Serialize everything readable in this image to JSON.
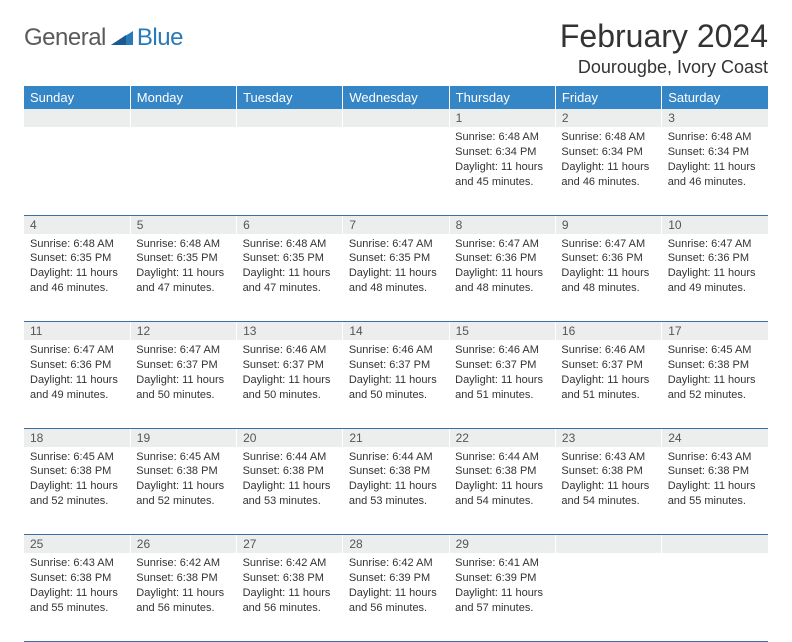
{
  "logo": {
    "general": "General",
    "blue": "Blue"
  },
  "title": "February 2024",
  "location": "Dourougbe, Ivory Coast",
  "colors": {
    "header_bg": "#3586c6",
    "header_fg": "#ffffff",
    "daynum_bg": "#eceded",
    "border": "#3a6fa5",
    "logo_blue": "#2a7ab8",
    "logo_gray": "#5a5a5a"
  },
  "weekdays": [
    "Sunday",
    "Monday",
    "Tuesday",
    "Wednesday",
    "Thursday",
    "Friday",
    "Saturday"
  ],
  "weeks": [
    [
      null,
      null,
      null,
      null,
      {
        "n": "1",
        "sr": "Sunrise: 6:48 AM",
        "ss": "Sunset: 6:34 PM",
        "d1": "Daylight: 11 hours",
        "d2": "and 45 minutes."
      },
      {
        "n": "2",
        "sr": "Sunrise: 6:48 AM",
        "ss": "Sunset: 6:34 PM",
        "d1": "Daylight: 11 hours",
        "d2": "and 46 minutes."
      },
      {
        "n": "3",
        "sr": "Sunrise: 6:48 AM",
        "ss": "Sunset: 6:34 PM",
        "d1": "Daylight: 11 hours",
        "d2": "and 46 minutes."
      }
    ],
    [
      {
        "n": "4",
        "sr": "Sunrise: 6:48 AM",
        "ss": "Sunset: 6:35 PM",
        "d1": "Daylight: 11 hours",
        "d2": "and 46 minutes."
      },
      {
        "n": "5",
        "sr": "Sunrise: 6:48 AM",
        "ss": "Sunset: 6:35 PM",
        "d1": "Daylight: 11 hours",
        "d2": "and 47 minutes."
      },
      {
        "n": "6",
        "sr": "Sunrise: 6:48 AM",
        "ss": "Sunset: 6:35 PM",
        "d1": "Daylight: 11 hours",
        "d2": "and 47 minutes."
      },
      {
        "n": "7",
        "sr": "Sunrise: 6:47 AM",
        "ss": "Sunset: 6:35 PM",
        "d1": "Daylight: 11 hours",
        "d2": "and 48 minutes."
      },
      {
        "n": "8",
        "sr": "Sunrise: 6:47 AM",
        "ss": "Sunset: 6:36 PM",
        "d1": "Daylight: 11 hours",
        "d2": "and 48 minutes."
      },
      {
        "n": "9",
        "sr": "Sunrise: 6:47 AM",
        "ss": "Sunset: 6:36 PM",
        "d1": "Daylight: 11 hours",
        "d2": "and 48 minutes."
      },
      {
        "n": "10",
        "sr": "Sunrise: 6:47 AM",
        "ss": "Sunset: 6:36 PM",
        "d1": "Daylight: 11 hours",
        "d2": "and 49 minutes."
      }
    ],
    [
      {
        "n": "11",
        "sr": "Sunrise: 6:47 AM",
        "ss": "Sunset: 6:36 PM",
        "d1": "Daylight: 11 hours",
        "d2": "and 49 minutes."
      },
      {
        "n": "12",
        "sr": "Sunrise: 6:47 AM",
        "ss": "Sunset: 6:37 PM",
        "d1": "Daylight: 11 hours",
        "d2": "and 50 minutes."
      },
      {
        "n": "13",
        "sr": "Sunrise: 6:46 AM",
        "ss": "Sunset: 6:37 PM",
        "d1": "Daylight: 11 hours",
        "d2": "and 50 minutes."
      },
      {
        "n": "14",
        "sr": "Sunrise: 6:46 AM",
        "ss": "Sunset: 6:37 PM",
        "d1": "Daylight: 11 hours",
        "d2": "and 50 minutes."
      },
      {
        "n": "15",
        "sr": "Sunrise: 6:46 AM",
        "ss": "Sunset: 6:37 PM",
        "d1": "Daylight: 11 hours",
        "d2": "and 51 minutes."
      },
      {
        "n": "16",
        "sr": "Sunrise: 6:46 AM",
        "ss": "Sunset: 6:37 PM",
        "d1": "Daylight: 11 hours",
        "d2": "and 51 minutes."
      },
      {
        "n": "17",
        "sr": "Sunrise: 6:45 AM",
        "ss": "Sunset: 6:38 PM",
        "d1": "Daylight: 11 hours",
        "d2": "and 52 minutes."
      }
    ],
    [
      {
        "n": "18",
        "sr": "Sunrise: 6:45 AM",
        "ss": "Sunset: 6:38 PM",
        "d1": "Daylight: 11 hours",
        "d2": "and 52 minutes."
      },
      {
        "n": "19",
        "sr": "Sunrise: 6:45 AM",
        "ss": "Sunset: 6:38 PM",
        "d1": "Daylight: 11 hours",
        "d2": "and 52 minutes."
      },
      {
        "n": "20",
        "sr": "Sunrise: 6:44 AM",
        "ss": "Sunset: 6:38 PM",
        "d1": "Daylight: 11 hours",
        "d2": "and 53 minutes."
      },
      {
        "n": "21",
        "sr": "Sunrise: 6:44 AM",
        "ss": "Sunset: 6:38 PM",
        "d1": "Daylight: 11 hours",
        "d2": "and 53 minutes."
      },
      {
        "n": "22",
        "sr": "Sunrise: 6:44 AM",
        "ss": "Sunset: 6:38 PM",
        "d1": "Daylight: 11 hours",
        "d2": "and 54 minutes."
      },
      {
        "n": "23",
        "sr": "Sunrise: 6:43 AM",
        "ss": "Sunset: 6:38 PM",
        "d1": "Daylight: 11 hours",
        "d2": "and 54 minutes."
      },
      {
        "n": "24",
        "sr": "Sunrise: 6:43 AM",
        "ss": "Sunset: 6:38 PM",
        "d1": "Daylight: 11 hours",
        "d2": "and 55 minutes."
      }
    ],
    [
      {
        "n": "25",
        "sr": "Sunrise: 6:43 AM",
        "ss": "Sunset: 6:38 PM",
        "d1": "Daylight: 11 hours",
        "d2": "and 55 minutes."
      },
      {
        "n": "26",
        "sr": "Sunrise: 6:42 AM",
        "ss": "Sunset: 6:38 PM",
        "d1": "Daylight: 11 hours",
        "d2": "and 56 minutes."
      },
      {
        "n": "27",
        "sr": "Sunrise: 6:42 AM",
        "ss": "Sunset: 6:38 PM",
        "d1": "Daylight: 11 hours",
        "d2": "and 56 minutes."
      },
      {
        "n": "28",
        "sr": "Sunrise: 6:42 AM",
        "ss": "Sunset: 6:39 PM",
        "d1": "Daylight: 11 hours",
        "d2": "and 56 minutes."
      },
      {
        "n": "29",
        "sr": "Sunrise: 6:41 AM",
        "ss": "Sunset: 6:39 PM",
        "d1": "Daylight: 11 hours",
        "d2": "and 57 minutes."
      },
      null,
      null
    ]
  ]
}
